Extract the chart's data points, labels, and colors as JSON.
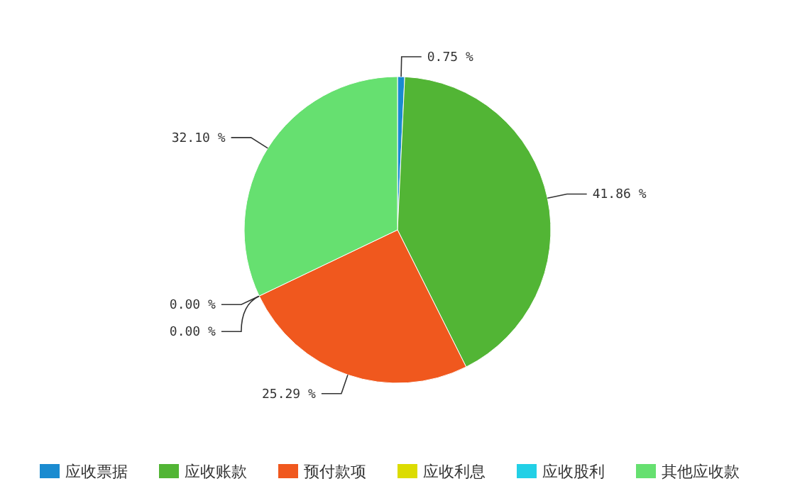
{
  "chart_data": {
    "type": "pie",
    "categories": [
      "应收票据",
      "应收账款",
      "预付款项",
      "应收利息",
      "应收股利",
      "其他应收款"
    ],
    "values": [
      0.75,
      41.86,
      25.29,
      0.0,
      0.0,
      32.1
    ],
    "value_labels": [
      "0.75 %",
      "41.86 %",
      "25.29 %",
      "0.00 %",
      "0.00 %",
      "32.10 %"
    ],
    "colors": [
      "#1a8bd0",
      "#52b535",
      "#f0581e",
      "#dcdc00",
      "#22d0e6",
      "#66e070"
    ],
    "legend": "bottom"
  }
}
